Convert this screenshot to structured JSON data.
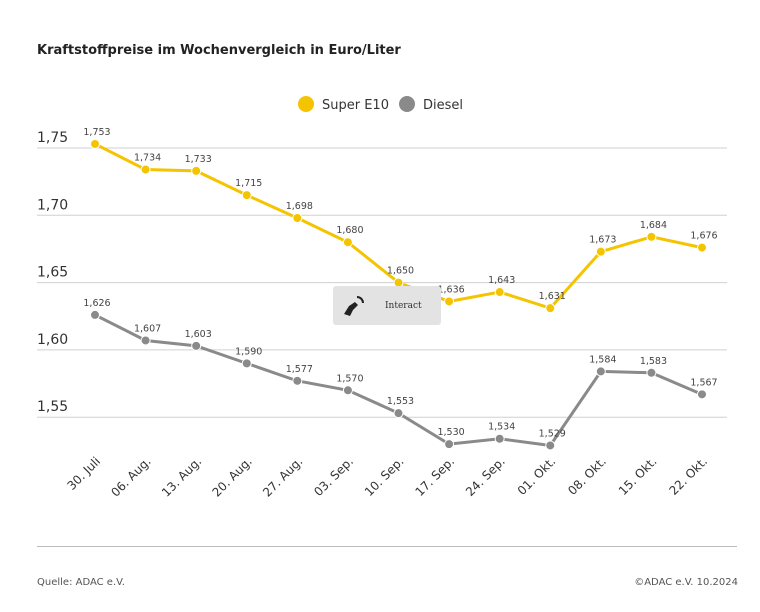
{
  "header": {
    "title": "Kraftstoffpreise im Wochenvergleich in Euro/Liter"
  },
  "footer": {
    "source": "Quelle: ADAC e.V.",
    "copyright": "©ADAC e.V. 10.2024"
  },
  "overlay": {
    "label": "Interact",
    "icon": "hand-pointer-icon"
  },
  "chart_data": {
    "type": "line",
    "title": "Kraftstoffpreise im Wochenvergleich in Euro/Liter",
    "categories": [
      "30. Juli",
      "06. Aug.",
      "13. Aug.",
      "20. Aug.",
      "27. Aug.",
      "03. Sep.",
      "10. Sep.",
      "17. Sep.",
      "24. Sep.",
      "01. Okt.",
      "08. Okt.",
      "15. Okt.",
      "22. Okt."
    ],
    "series": [
      {
        "name": "Super E10",
        "color": "#f5c400",
        "values": [
          1.753,
          1.734,
          1.733,
          1.715,
          1.698,
          1.68,
          1.65,
          1.636,
          1.643,
          1.631,
          1.673,
          1.684,
          1.676
        ],
        "labels": [
          "1,753",
          "1,734",
          "1,733",
          "1,715",
          "1,698",
          "1,680",
          "1,650",
          "1,636",
          "1,643",
          "1,631",
          "1,673",
          "1,684",
          "1,676"
        ]
      },
      {
        "name": "Diesel",
        "color": "#8a8a8a",
        "values": [
          1.626,
          1.607,
          1.603,
          1.59,
          1.577,
          1.57,
          1.553,
          1.53,
          1.534,
          1.529,
          1.584,
          1.583,
          1.567
        ],
        "labels": [
          "1,626",
          "1,607",
          "1,603",
          "1,590",
          "1,577",
          "1,570",
          "1,553",
          "1,530",
          "1,534",
          "1,529",
          "1,584",
          "1,583",
          "1,567"
        ]
      }
    ],
    "yticks": [
      1.75,
      1.7,
      1.65,
      1.6,
      1.55
    ],
    "ytick_labels": [
      "1,75",
      "1,70",
      "1,65",
      "1,60",
      "1,55"
    ],
    "grid": true,
    "legend": "top-center"
  }
}
